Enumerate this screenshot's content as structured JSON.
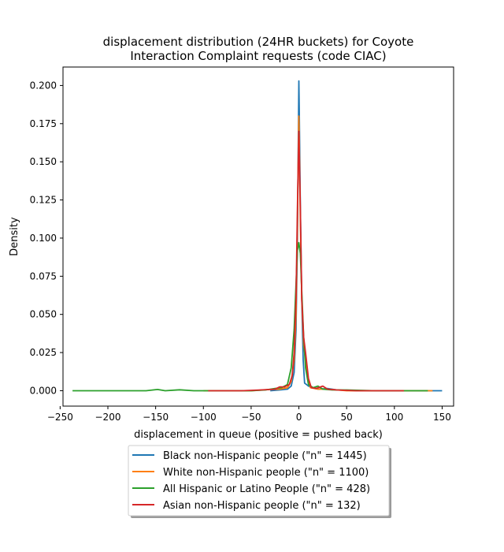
{
  "chart_data": {
    "type": "line",
    "title_line1": "displacement distribution (24HR buckets) for Coyote",
    "title_line2": "Interaction Complaint requests (code CIAC)",
    "xlabel": "displacement in queue (positive = pushed back)",
    "ylabel": "Density",
    "xlim": [
      -247,
      162
    ],
    "ylim": [
      -0.0101,
      0.2121
    ],
    "xticks": [
      {
        "value": -250,
        "label": "−250"
      },
      {
        "value": -200,
        "label": "−200"
      },
      {
        "value": -150,
        "label": "−150"
      },
      {
        "value": -100,
        "label": "−100"
      },
      {
        "value": -50,
        "label": "−50"
      },
      {
        "value": 0,
        "label": "0"
      },
      {
        "value": 50,
        "label": "50"
      },
      {
        "value": 100,
        "label": "100"
      },
      {
        "value": 150,
        "label": "150"
      }
    ],
    "yticks": [
      {
        "value": 0.0,
        "label": "0.000"
      },
      {
        "value": 0.025,
        "label": "0.025"
      },
      {
        "value": 0.05,
        "label": "0.050"
      },
      {
        "value": 0.075,
        "label": "0.075"
      },
      {
        "value": 0.1,
        "label": "0.100"
      },
      {
        "value": 0.125,
        "label": "0.125"
      },
      {
        "value": 0.15,
        "label": "0.150"
      },
      {
        "value": 0.175,
        "label": "0.175"
      },
      {
        "value": 0.2,
        "label": "0.200"
      }
    ],
    "grid": false,
    "legend_position": "below plot",
    "series": [
      {
        "name": "Black non-Hispanic people (\"n\" = 1445)",
        "color": "#1f77b4",
        "points": [
          [
            -30,
            0.0
          ],
          [
            -20,
            0.0005
          ],
          [
            -12,
            0.001
          ],
          [
            -8,
            0.003
          ],
          [
            -5,
            0.012
          ],
          [
            -3,
            0.04
          ],
          [
            -1.5,
            0.1
          ],
          [
            -0.5,
            0.17
          ],
          [
            0,
            0.203
          ],
          [
            0.5,
            0.18
          ],
          [
            1.5,
            0.12
          ],
          [
            3,
            0.06
          ],
          [
            4.5,
            0.02
          ],
          [
            6,
            0.005
          ],
          [
            10,
            0.003
          ],
          [
            15,
            0.002
          ],
          [
            20,
            0.001
          ],
          [
            30,
            0.0015
          ],
          [
            40,
            0.0005
          ],
          [
            60,
            0.0
          ],
          [
            100,
            0.0
          ],
          [
            150,
            0.0
          ]
        ]
      },
      {
        "name": "White non-Hispanic people (\"n\" = 1100)",
        "color": "#ff7f0e",
        "points": [
          [
            -100,
            0.0
          ],
          [
            -50,
            0.0
          ],
          [
            -30,
            0.0008
          ],
          [
            -20,
            0.001
          ],
          [
            -12,
            0.002
          ],
          [
            -8,
            0.006
          ],
          [
            -5,
            0.02
          ],
          [
            -3,
            0.05
          ],
          [
            -1.5,
            0.11
          ],
          [
            -0.5,
            0.16
          ],
          [
            0,
            0.18
          ],
          [
            0.5,
            0.16
          ],
          [
            1.5,
            0.11
          ],
          [
            3,
            0.06
          ],
          [
            5,
            0.03
          ],
          [
            7,
            0.02
          ],
          [
            9,
            0.008
          ],
          [
            12,
            0.002
          ],
          [
            20,
            0.001
          ],
          [
            30,
            0.001
          ],
          [
            50,
            0.0
          ],
          [
            100,
            0.0
          ],
          [
            140,
            0.0
          ]
        ]
      },
      {
        "name": "All Hispanic or Latino People (\"n\" = 428)",
        "color": "#2ca02c",
        "points": [
          [
            -237,
            0.0
          ],
          [
            -200,
            0.0
          ],
          [
            -160,
            0.0
          ],
          [
            -148,
            0.0008
          ],
          [
            -140,
            0.0
          ],
          [
            -125,
            0.0006
          ],
          [
            -110,
            0.0
          ],
          [
            -80,
            0.0
          ],
          [
            -50,
            0.0
          ],
          [
            -35,
            0.0005
          ],
          [
            -25,
            0.0015
          ],
          [
            -18,
            0.002
          ],
          [
            -12,
            0.004
          ],
          [
            -8,
            0.015
          ],
          [
            -5,
            0.04
          ],
          [
            -3,
            0.07
          ],
          [
            -1.5,
            0.092
          ],
          [
            0,
            0.097
          ],
          [
            1.5,
            0.09
          ],
          [
            3,
            0.065
          ],
          [
            5,
            0.035
          ],
          [
            7,
            0.015
          ],
          [
            10,
            0.004
          ],
          [
            15,
            0.002
          ],
          [
            20,
            0.003
          ],
          [
            25,
            0.001
          ],
          [
            35,
            0.0005
          ],
          [
            50,
            0.0005
          ],
          [
            80,
            0.0
          ],
          [
            120,
            0.0
          ],
          [
            135,
            0.0
          ]
        ]
      },
      {
        "name": "Asian non-Hispanic people (\"n\" = 132)",
        "color": "#d62728",
        "points": [
          [
            -95,
            0.0
          ],
          [
            -60,
            0.0
          ],
          [
            -40,
            0.0005
          ],
          [
            -25,
            0.001
          ],
          [
            -20,
            0.0025
          ],
          [
            -15,
            0.0025
          ],
          [
            -10,
            0.004
          ],
          [
            -7,
            0.01
          ],
          [
            -5,
            0.025
          ],
          [
            -3,
            0.06
          ],
          [
            -1.5,
            0.12
          ],
          [
            0,
            0.17
          ],
          [
            1.5,
            0.12
          ],
          [
            3,
            0.06
          ],
          [
            5,
            0.035
          ],
          [
            7,
            0.025
          ],
          [
            10,
            0.008
          ],
          [
            13,
            0.002
          ],
          [
            18,
            0.0015
          ],
          [
            25,
            0.003
          ],
          [
            30,
            0.001
          ],
          [
            40,
            0.0005
          ],
          [
            60,
            0.0
          ],
          [
            110,
            0.0
          ]
        ]
      }
    ]
  }
}
